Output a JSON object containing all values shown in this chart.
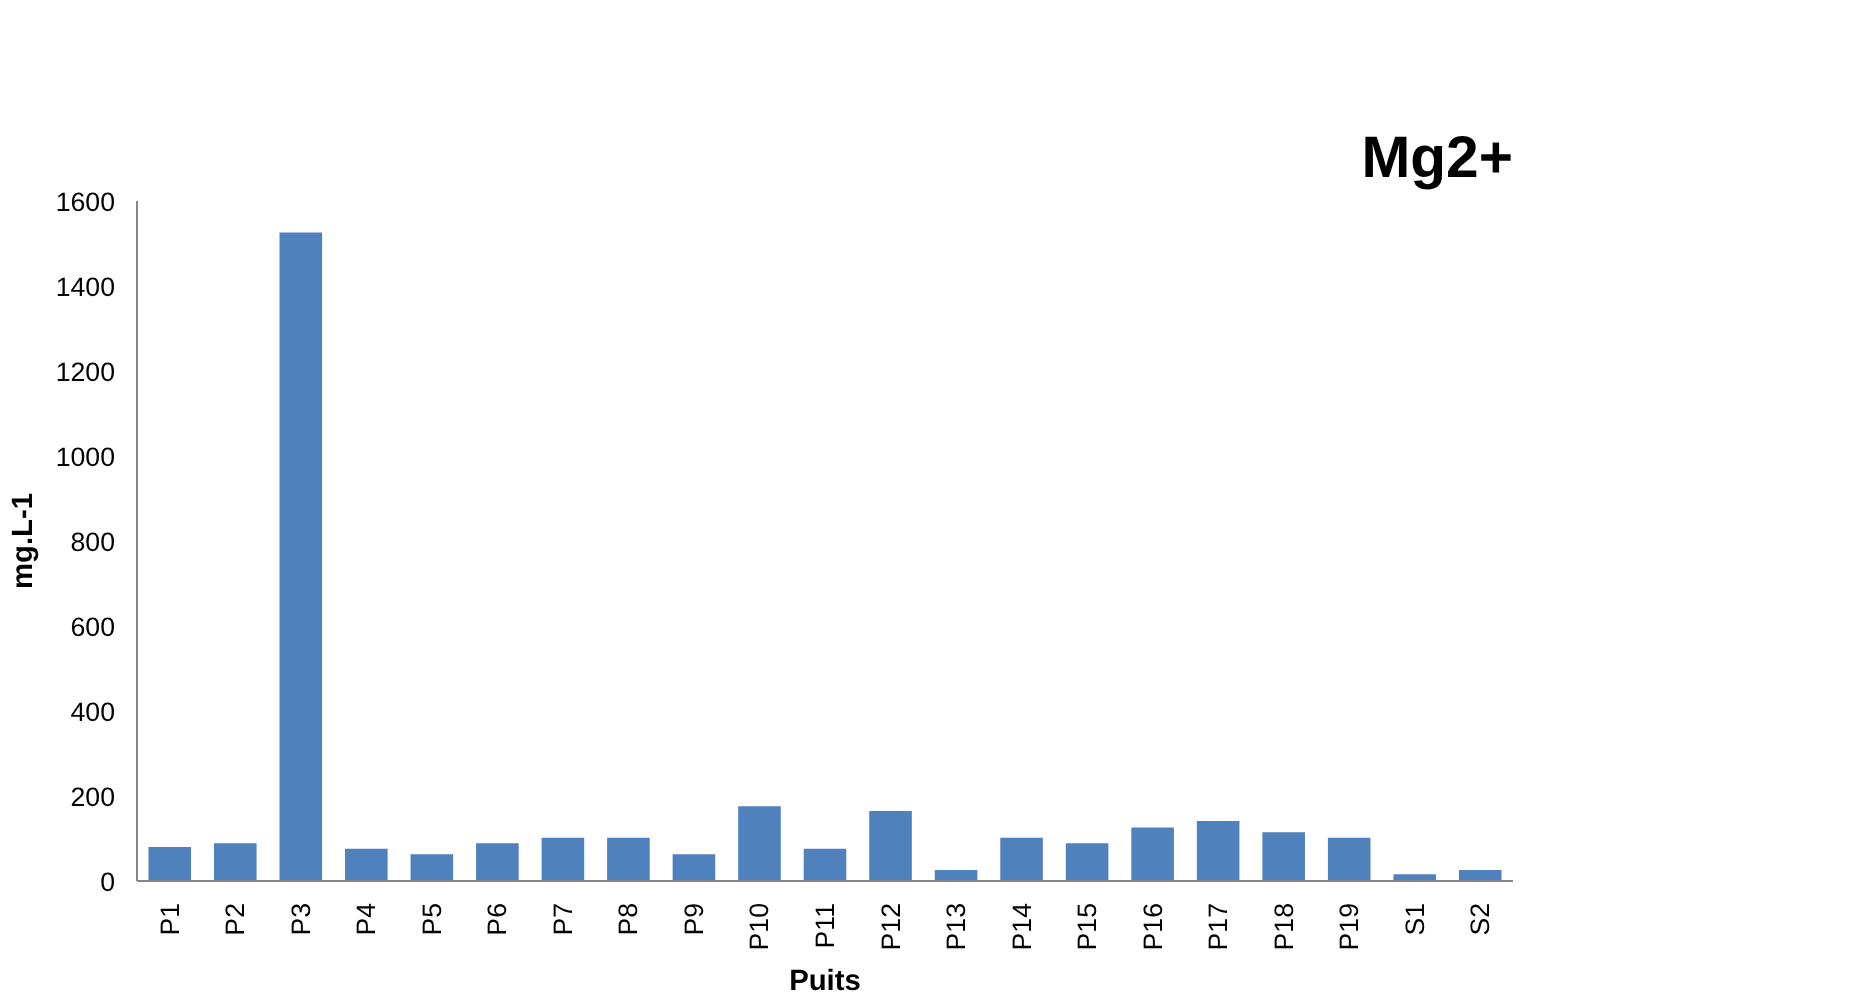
{
  "chart_data": {
    "type": "bar",
    "title": "Mg2+",
    "xlabel": "Puits",
    "ylabel": "mg.L-1",
    "categories": [
      "P1",
      "P2",
      "P3",
      "P4",
      "P5",
      "P6",
      "P7",
      "P8",
      "P9",
      "P10",
      "P11",
      "P12",
      "P13",
      "P14",
      "P15",
      "P16",
      "P17",
      "P18",
      "P19",
      "S1",
      "S2"
    ],
    "values": [
      80,
      89,
      1526,
      76,
      63,
      89,
      102,
      102,
      63,
      176,
      76,
      165,
      26,
      102,
      89,
      126,
      141,
      115,
      102,
      16,
      26
    ],
    "color": "#4f81bd",
    "ylim": [
      0,
      1600
    ],
    "yticks": [
      0,
      200,
      400,
      600,
      800,
      1000,
      1200,
      1400,
      1600
    ],
    "grid": false
  }
}
